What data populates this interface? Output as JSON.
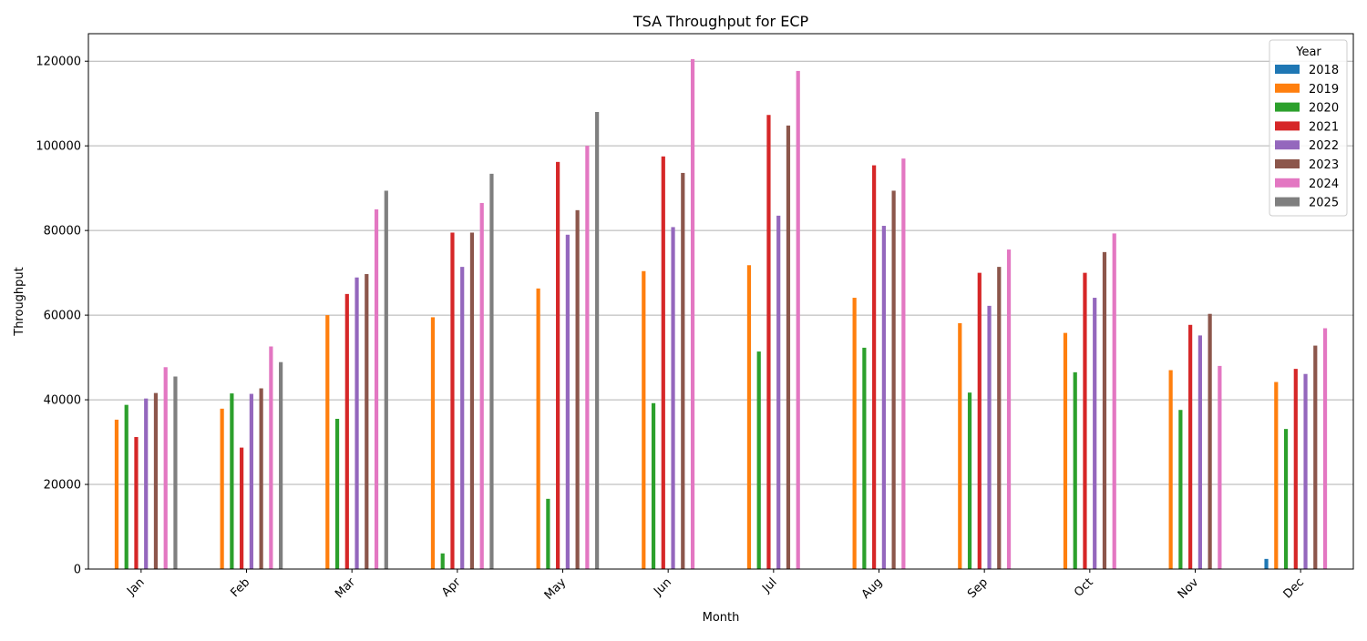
{
  "chart_data": {
    "type": "bar",
    "title": "TSA Throughput for ECP",
    "xlabel": "Month",
    "ylabel": "Throughput",
    "categories": [
      "Jan",
      "Feb",
      "Mar",
      "Apr",
      "May",
      "Jun",
      "Jul",
      "Aug",
      "Sep",
      "Oct",
      "Nov",
      "Dec"
    ],
    "ylim": [
      0,
      126500
    ],
    "yticks": [
      0,
      20000,
      40000,
      60000,
      80000,
      100000,
      120000
    ],
    "grid": "y",
    "legend": {
      "title": "Year",
      "placement": "top-right"
    },
    "series": [
      {
        "name": "2018",
        "color": "#1f77b4",
        "values": [
          null,
          null,
          null,
          null,
          null,
          null,
          null,
          null,
          null,
          null,
          null,
          2400
        ]
      },
      {
        "name": "2019",
        "color": "#ff7f0e",
        "values": [
          35300,
          37900,
          60000,
          59500,
          66300,
          70400,
          71800,
          64100,
          58100,
          55800,
          47000,
          44200
        ]
      },
      {
        "name": "2020",
        "color": "#2ca02c",
        "values": [
          38800,
          41500,
          35500,
          3700,
          16600,
          39200,
          51400,
          52300,
          41700,
          46500,
          37600,
          33100
        ]
      },
      {
        "name": "2021",
        "color": "#d62728",
        "values": [
          31200,
          28700,
          65000,
          79500,
          96200,
          97500,
          107300,
          95400,
          70000,
          70000,
          57700,
          47300
        ]
      },
      {
        "name": "2022",
        "color": "#9467bd",
        "values": [
          40300,
          41400,
          68900,
          71400,
          79000,
          80800,
          83500,
          81100,
          62200,
          64100,
          55200,
          46100
        ]
      },
      {
        "name": "2023",
        "color": "#8c564b",
        "values": [
          41600,
          42700,
          69700,
          79500,
          84800,
          93600,
          104800,
          89400,
          71400,
          74900,
          60300,
          52800
        ]
      },
      {
        "name": "2024",
        "color": "#e377c2",
        "values": [
          47700,
          52600,
          85000,
          86500,
          100000,
          120500,
          117700,
          97000,
          75500,
          79300,
          48000,
          56900
        ]
      },
      {
        "name": "2025",
        "color": "#7f7f7f",
        "values": [
          45500,
          48900,
          89400,
          93400,
          108000,
          null,
          null,
          null,
          null,
          null,
          null,
          null
        ]
      }
    ]
  }
}
